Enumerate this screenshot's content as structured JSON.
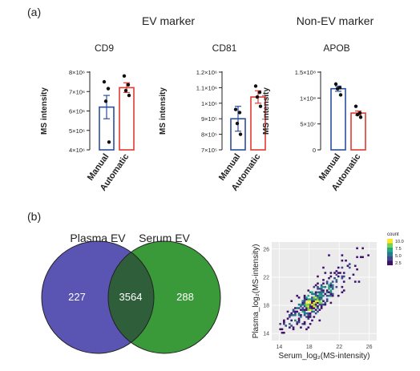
{
  "panel_a": {
    "label": "(a)",
    "ev_marker_title": "EV marker",
    "non_ev_marker_title": "Non-EV marker"
  },
  "panel_b": {
    "label": "(b)"
  },
  "colors": {
    "manual": "#2b4ea2",
    "automatic": "#e23a2e",
    "venn_plasma": "#5a55b2",
    "venn_serum": "#3a9a3a",
    "venn_overlap": "#2e5f3a"
  },
  "chart_data": [
    {
      "id": "cd9",
      "type": "bar",
      "title": "CD9",
      "ylabel": "MS intensity",
      "categories": [
        "Manual",
        "Automatic"
      ],
      "values": [
        6200000,
        7200000
      ],
      "errors": [
        600000,
        250000
      ],
      "points": [
        [
          7500000,
          7150000,
          6500000,
          4400000
        ],
        [
          7800000,
          7350000,
          7050000,
          6800000
        ]
      ],
      "ylim": [
        4000000,
        8000000
      ],
      "yticks": [
        4000000,
        5000000,
        6000000,
        7000000,
        8000000
      ],
      "yticklabels": [
        "4×10⁶",
        "5×10⁶",
        "6×10⁶",
        "7×10⁶",
        "8×10⁶"
      ]
    },
    {
      "id": "cd81",
      "type": "bar",
      "title": "CD81",
      "ylabel": "MS intensity",
      "categories": [
        "Manual",
        "Automatic"
      ],
      "values": [
        900000,
        1040000
      ],
      "errors": [
        80000,
        40000
      ],
      "points": [
        [
          960000,
          940000,
          870000,
          800000
        ],
        [
          1110000,
          1070000,
          1040000,
          980000
        ]
      ],
      "ylim": [
        700000,
        1200000
      ],
      "yticks": [
        700000,
        800000,
        900000,
        1000000,
        1100000,
        1200000
      ],
      "yticklabels": [
        "7×10⁵",
        "8×10⁵",
        "9×10⁵",
        "1×10⁶",
        "1.1×10⁶",
        "1.2×10⁶"
      ]
    },
    {
      "id": "apob",
      "type": "bar",
      "title": "APOB",
      "ylabel": "MS intensity",
      "categories": [
        "Manual",
        "Automatic"
      ],
      "values": [
        118000000,
        71000000
      ],
      "errors": [
        5000000,
        4000000
      ],
      "points": [
        [
          127000000,
          120000000,
          118000000,
          106000000
        ],
        [
          84000000,
          71000000,
          68000000,
          63000000
        ]
      ],
      "ylim": [
        0,
        150000000
      ],
      "yticks": [
        0,
        50000000,
        100000000,
        150000000
      ],
      "yticklabels": [
        "0",
        "5×10⁷",
        "1×10⁸",
        "1.5×10⁸"
      ]
    },
    {
      "id": "venn",
      "type": "venn",
      "sets": [
        "Plasma EV",
        "Serum EV"
      ],
      "values": {
        "plasma_only": 227,
        "both": 3564,
        "serum_only": 288
      }
    },
    {
      "id": "density",
      "type": "heatmap",
      "xlabel": "Serum_log₂(MS-intensity)",
      "ylabel": "Plasma_log₂(MS-intensity)",
      "xlim": [
        13,
        27
      ],
      "ylim": [
        13,
        27
      ],
      "xticks": [
        14,
        18,
        22,
        26
      ],
      "yticks": [
        14,
        18,
        22,
        26
      ],
      "legend_title": "count",
      "legend_ticks": [
        "10.0",
        "7.5",
        "5.0",
        "2.5"
      ],
      "legend_position": "top-right",
      "grid": true
    }
  ]
}
